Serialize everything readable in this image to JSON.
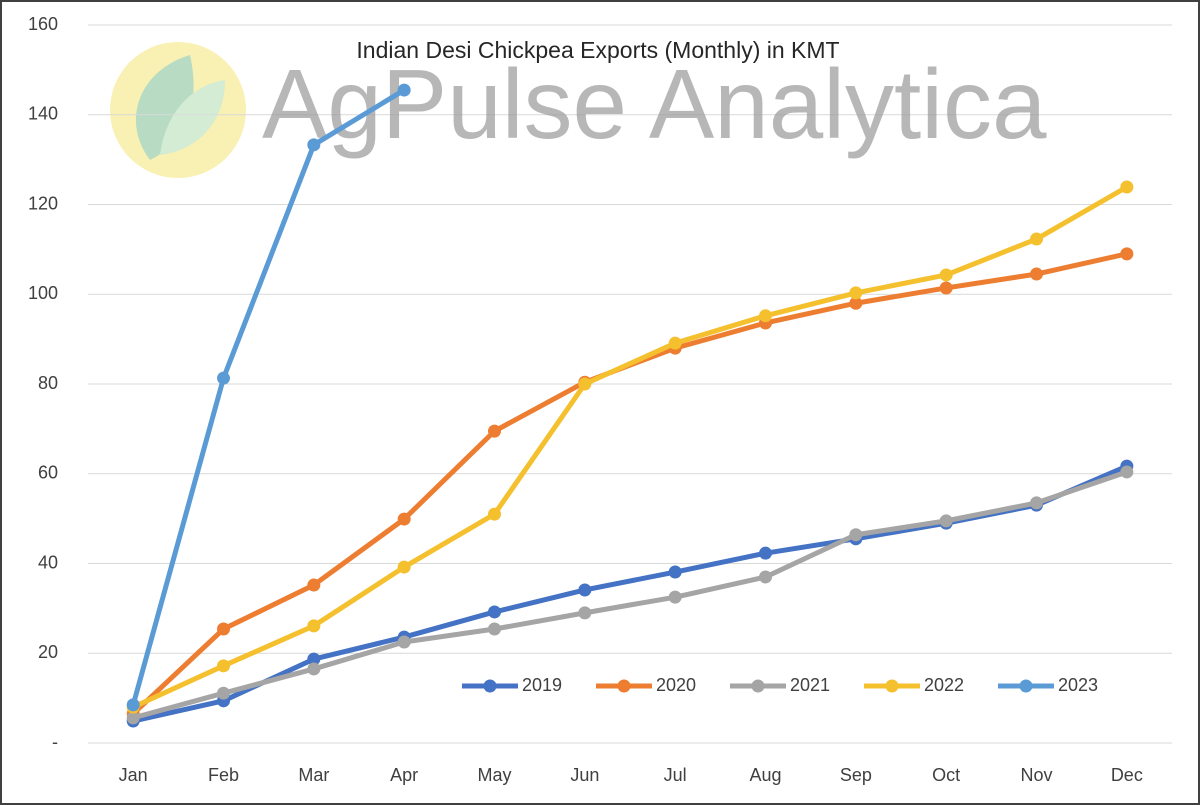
{
  "chart_data": {
    "type": "line",
    "title": "Indian Desi Chickpea Exports (Monthly) in KMT",
    "watermark": "AgPulse Analytica",
    "categories": [
      "Jan",
      "Feb",
      "Mar",
      "Apr",
      "May",
      "Jun",
      "Jul",
      "Aug",
      "Sep",
      "Oct",
      "Nov",
      "Dec"
    ],
    "series": [
      {
        "name": "2019",
        "color": "#4472c4",
        "values": [
          4.9,
          9.4,
          18.7,
          23.6,
          29.2,
          34.1,
          38.1,
          42.3,
          45.5,
          49,
          53,
          61.7
        ]
      },
      {
        "name": "2020",
        "color": "#ed7d31",
        "values": [
          6.5,
          25.4,
          35.2,
          49.9,
          69.5,
          80.4,
          88,
          93.6,
          98,
          101.4,
          104.5,
          109
        ]
      },
      {
        "name": "2021",
        "color": "#a5a5a5",
        "values": [
          5.6,
          11.1,
          16.5,
          22.5,
          25.4,
          29,
          32.5,
          37,
          46.4,
          49.5,
          53.5,
          60.4
        ]
      },
      {
        "name": "2022",
        "color": "#f5c02e",
        "values": [
          8,
          17.2,
          26.1,
          39.2,
          51,
          80,
          89.1,
          95.2,
          100.3,
          104.3,
          112.3,
          123.9
        ]
      },
      {
        "name": "2023",
        "color": "#5b9bd5",
        "values": [
          8.5,
          81.3,
          133.3,
          145.5,
          null,
          null,
          null,
          null,
          null,
          null,
          null,
          null
        ]
      }
    ],
    "ylim": [
      0,
      160
    ],
    "yticks": [
      {
        "value": 0,
        "label": "-"
      },
      20,
      40,
      60,
      80,
      100,
      120,
      140,
      160
    ],
    "grid": true,
    "legend": "bottom"
  }
}
